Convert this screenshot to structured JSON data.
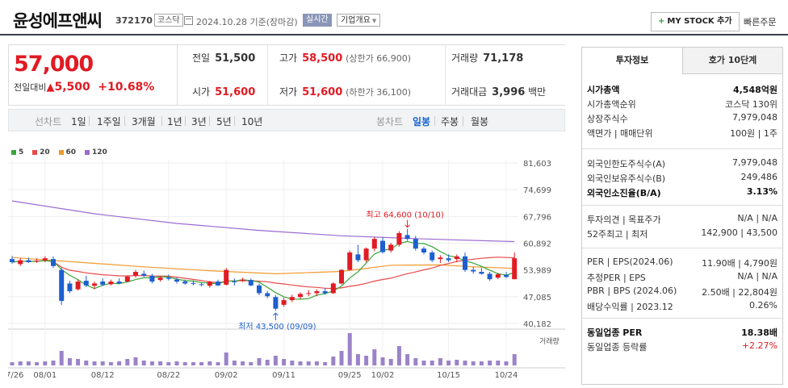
{
  "header": {
    "stock_name": "윤성에프앤씨",
    "stock_code": "372170",
    "market": "코스닥",
    "date_text": "2024.10.28 기준(장마감)",
    "realtime_label": "실시간",
    "corp_overview_label": "기업개요",
    "mystock_label": "MY STOCK 추가",
    "quick_order_label": "빠른주문"
  },
  "quote": {
    "price": "57,000",
    "change_label": "전일대비",
    "change_value": "5,500",
    "change_pct": "+10.68%",
    "prev_close_label": "전일",
    "prev_close": "51,500",
    "open_label": "시가",
    "open": "51,600",
    "high_label": "고가",
    "high": "58,500",
    "upper_limit": "(상한가 66,900)",
    "low_label": "저가",
    "low": "51,600",
    "lower_limit": "(하한가 36,100)",
    "volume_label": "거래량",
    "volume": "71,178",
    "amount_label": "거래대금",
    "amount": "3,996",
    "amount_unit": "백만"
  },
  "period_tabs": {
    "line_label": "선차트",
    "line_items": [
      "1일",
      "1주일",
      "3개월",
      "1년",
      "3년",
      "5년",
      "10년"
    ],
    "candle_label": "봉차트",
    "candle_items": [
      "일봉",
      "주봉",
      "월봉"
    ],
    "selected": "일봉"
  },
  "colors": {
    "up": "#e01b24",
    "down": "#1d5fd0",
    "ma5": "#3aa63a",
    "ma20": "#e84a4a",
    "ma60": "#f29a2e",
    "ma120": "#9a6bd1",
    "volume": "#9b83c8"
  },
  "chart_data": {
    "type": "candlestick",
    "legend": [
      {
        "name": "5"
      },
      {
        "name": "20"
      },
      {
        "name": "60"
      },
      {
        "name": "120"
      }
    ],
    "y_ticks": [
      "81,603",
      "74,699",
      "67,796",
      "60,892",
      "53,989",
      "47,085",
      "40,182"
    ],
    "ylim": [
      40182,
      81603
    ],
    "x_ticks": [
      {
        "label": "07/26",
        "i": 0
      },
      {
        "label": "08/01",
        "i": 4
      },
      {
        "label": "08/12",
        "i": 11
      },
      {
        "label": "08/22",
        "i": 19
      },
      {
        "label": "09/02",
        "i": 26
      },
      {
        "label": "09/11",
        "i": 33
      },
      {
        "label": "09/25",
        "i": 41
      },
      {
        "label": "10/02",
        "i": 45
      },
      {
        "label": "10/15",
        "i": 53
      },
      {
        "label": "10/24",
        "i": 60
      }
    ],
    "volume_label": "거래량",
    "high_annotation": "최고 64,600 (10/10)",
    "low_annotation": "최저 43,500 (09/09)",
    "candles": [
      [
        56800,
        57600,
        55600,
        56000
      ],
      [
        55500,
        57000,
        55000,
        56500
      ],
      [
        56500,
        57200,
        55800,
        56000
      ],
      [
        56200,
        57000,
        55800,
        56400
      ],
      [
        56500,
        57500,
        56000,
        57000
      ],
      [
        56800,
        57500,
        54500,
        55000
      ],
      [
        54000,
        54500,
        45000,
        46000
      ],
      [
        50500,
        51200,
        48000,
        48500
      ],
      [
        49000,
        51500,
        48700,
        51000
      ],
      [
        51200,
        52500,
        49600,
        50000
      ],
      [
        49900,
        51000,
        49000,
        50500
      ],
      [
        51000,
        51800,
        49800,
        50200
      ],
      [
        50300,
        51500,
        50000,
        51000
      ],
      [
        51000,
        51800,
        50300,
        50500
      ],
      [
        51000,
        52500,
        50800,
        52300
      ],
      [
        52500,
        54000,
        52000,
        53500
      ],
      [
        53000,
        53800,
        52200,
        52500
      ],
      [
        52500,
        53000,
        50500,
        51000
      ],
      [
        51400,
        52500,
        51000,
        52000
      ],
      [
        52000,
        52800,
        51300,
        51700
      ],
      [
        51500,
        52000,
        50500,
        51000
      ],
      [
        51000,
        51500,
        50200,
        50500
      ],
      [
        50600,
        51300,
        50000,
        50400
      ],
      [
        50300,
        50800,
        49800,
        50100
      ],
      [
        49900,
        51200,
        49400,
        50900
      ],
      [
        51000,
        51500,
        49800,
        50000
      ],
      [
        50200,
        54500,
        50000,
        54000
      ],
      [
        51000,
        51800,
        50000,
        50800
      ],
      [
        51200,
        52000,
        50900,
        51500
      ],
      [
        51400,
        51800,
        49800,
        50000
      ],
      [
        50000,
        50500,
        47500,
        48000
      ],
      [
        48000,
        48600,
        46700,
        47200
      ],
      [
        47000,
        47500,
        43500,
        44000
      ],
      [
        45000,
        46800,
        44500,
        46200
      ],
      [
        46200,
        47600,
        45700,
        47000
      ],
      [
        47000,
        48200,
        46500,
        47800
      ],
      [
        47800,
        48800,
        47200,
        48000
      ],
      [
        48000,
        49000,
        47200,
        48500
      ],
      [
        48500,
        49300,
        47600,
        48000
      ],
      [
        48000,
        50800,
        47800,
        50500
      ],
      [
        50500,
        54200,
        50200,
        54000
      ],
      [
        54000,
        59000,
        53800,
        58500
      ],
      [
        58000,
        60500,
        56000,
        56500
      ],
      [
        56500,
        59800,
        56000,
        59500
      ],
      [
        59500,
        62500,
        58800,
        62000
      ],
      [
        61500,
        62500,
        58200,
        58600
      ],
      [
        59000,
        61000,
        58500,
        60500
      ],
      [
        60500,
        64000,
        60000,
        63500
      ],
      [
        63000,
        64600,
        61500,
        62000
      ],
      [
        62000,
        62800,
        59000,
        59500
      ],
      [
        59500,
        60000,
        58000,
        58500
      ],
      [
        58500,
        59000,
        56000,
        56500
      ],
      [
        56800,
        57800,
        55800,
        57200
      ],
      [
        57000,
        58000,
        56000,
        56500
      ],
      [
        56800,
        58000,
        56000,
        57500
      ],
      [
        57500,
        58500,
        53500,
        54000
      ],
      [
        54000,
        54800,
        53000,
        53600
      ],
      [
        53500,
        54500,
        52800,
        53000
      ],
      [
        53000,
        53500,
        51200,
        51600
      ],
      [
        52000,
        53200,
        51600,
        52900
      ],
      [
        52700,
        53500,
        51800,
        52200
      ],
      [
        51600,
        58500,
        51600,
        57000
      ]
    ],
    "volumes": [
      4,
      5,
      5,
      4,
      5,
      6,
      18,
      9,
      8,
      6,
      5,
      5,
      4,
      5,
      8,
      10,
      6,
      5,
      5,
      4,
      5,
      4,
      4,
      4,
      5,
      4,
      16,
      6,
      5,
      4,
      9,
      7,
      12,
      8,
      6,
      5,
      5,
      5,
      4,
      11,
      18,
      40,
      14,
      12,
      20,
      10,
      8,
      24,
      14,
      9,
      6,
      6,
      9,
      6,
      7,
      6,
      5,
      5,
      6,
      6,
      5,
      14
    ],
    "ma60": [
      [
        0,
        57200
      ],
      [
        8,
        56000
      ],
      [
        16,
        54800
      ],
      [
        24,
        53800
      ],
      [
        32,
        53000
      ],
      [
        40,
        53600
      ],
      [
        46,
        55200
      ],
      [
        52,
        55300
      ],
      [
        56,
        54800
      ],
      [
        61,
        54400
      ]
    ],
    "ma120": [
      [
        0,
        71800
      ],
      [
        10,
        68500
      ],
      [
        20,
        66000
      ],
      [
        30,
        64200
      ],
      [
        40,
        62800
      ],
      [
        50,
        62000
      ],
      [
        61,
        61300
      ]
    ]
  },
  "invest_panel": {
    "tab_active": "투자정보",
    "tab_other": "호가 10단계",
    "rows1": [
      {
        "label": "시가총액",
        "value": "4,548억원",
        "bold": true
      },
      {
        "label": "시가총액순위",
        "value": "코스닥 130위"
      },
      {
        "label": "상장주식수",
        "value": "7,979,048"
      },
      {
        "label": "액면가 | 매매단위",
        "value": "100원 | 1주"
      }
    ],
    "rows2": [
      {
        "label": "외국인한도주식수(A)",
        "value": "7,979,048"
      },
      {
        "label": "외국인보유주식수(B)",
        "value": "249,486"
      },
      {
        "label": "외국인소진율(B/A)",
        "value": "3.13%",
        "bold": true
      }
    ],
    "rows3": [
      {
        "label": "투자의견 | 목표주가",
        "value": "N/A | N/A"
      },
      {
        "label": "52주최고 | 최저",
        "value": "142,900 | 43,500"
      }
    ],
    "rows4": [
      {
        "label": "PER | EPS(2024.06)",
        "value": "11.90배 | 4,790원"
      },
      {
        "label": "추정PER | EPS",
        "value": "N/A | N/A"
      },
      {
        "label": "PBR | BPS (2024.06)",
        "value": "2.50배 | 22,804원"
      },
      {
        "label": "배당수익률 | 2023.12",
        "value": "0.26%"
      }
    ],
    "rows5": [
      {
        "label": "동일업종 PER",
        "value": "18.38배",
        "bold": true
      },
      {
        "label": "동일업종 등락률",
        "value": "+2.27%",
        "red": true
      }
    ]
  }
}
